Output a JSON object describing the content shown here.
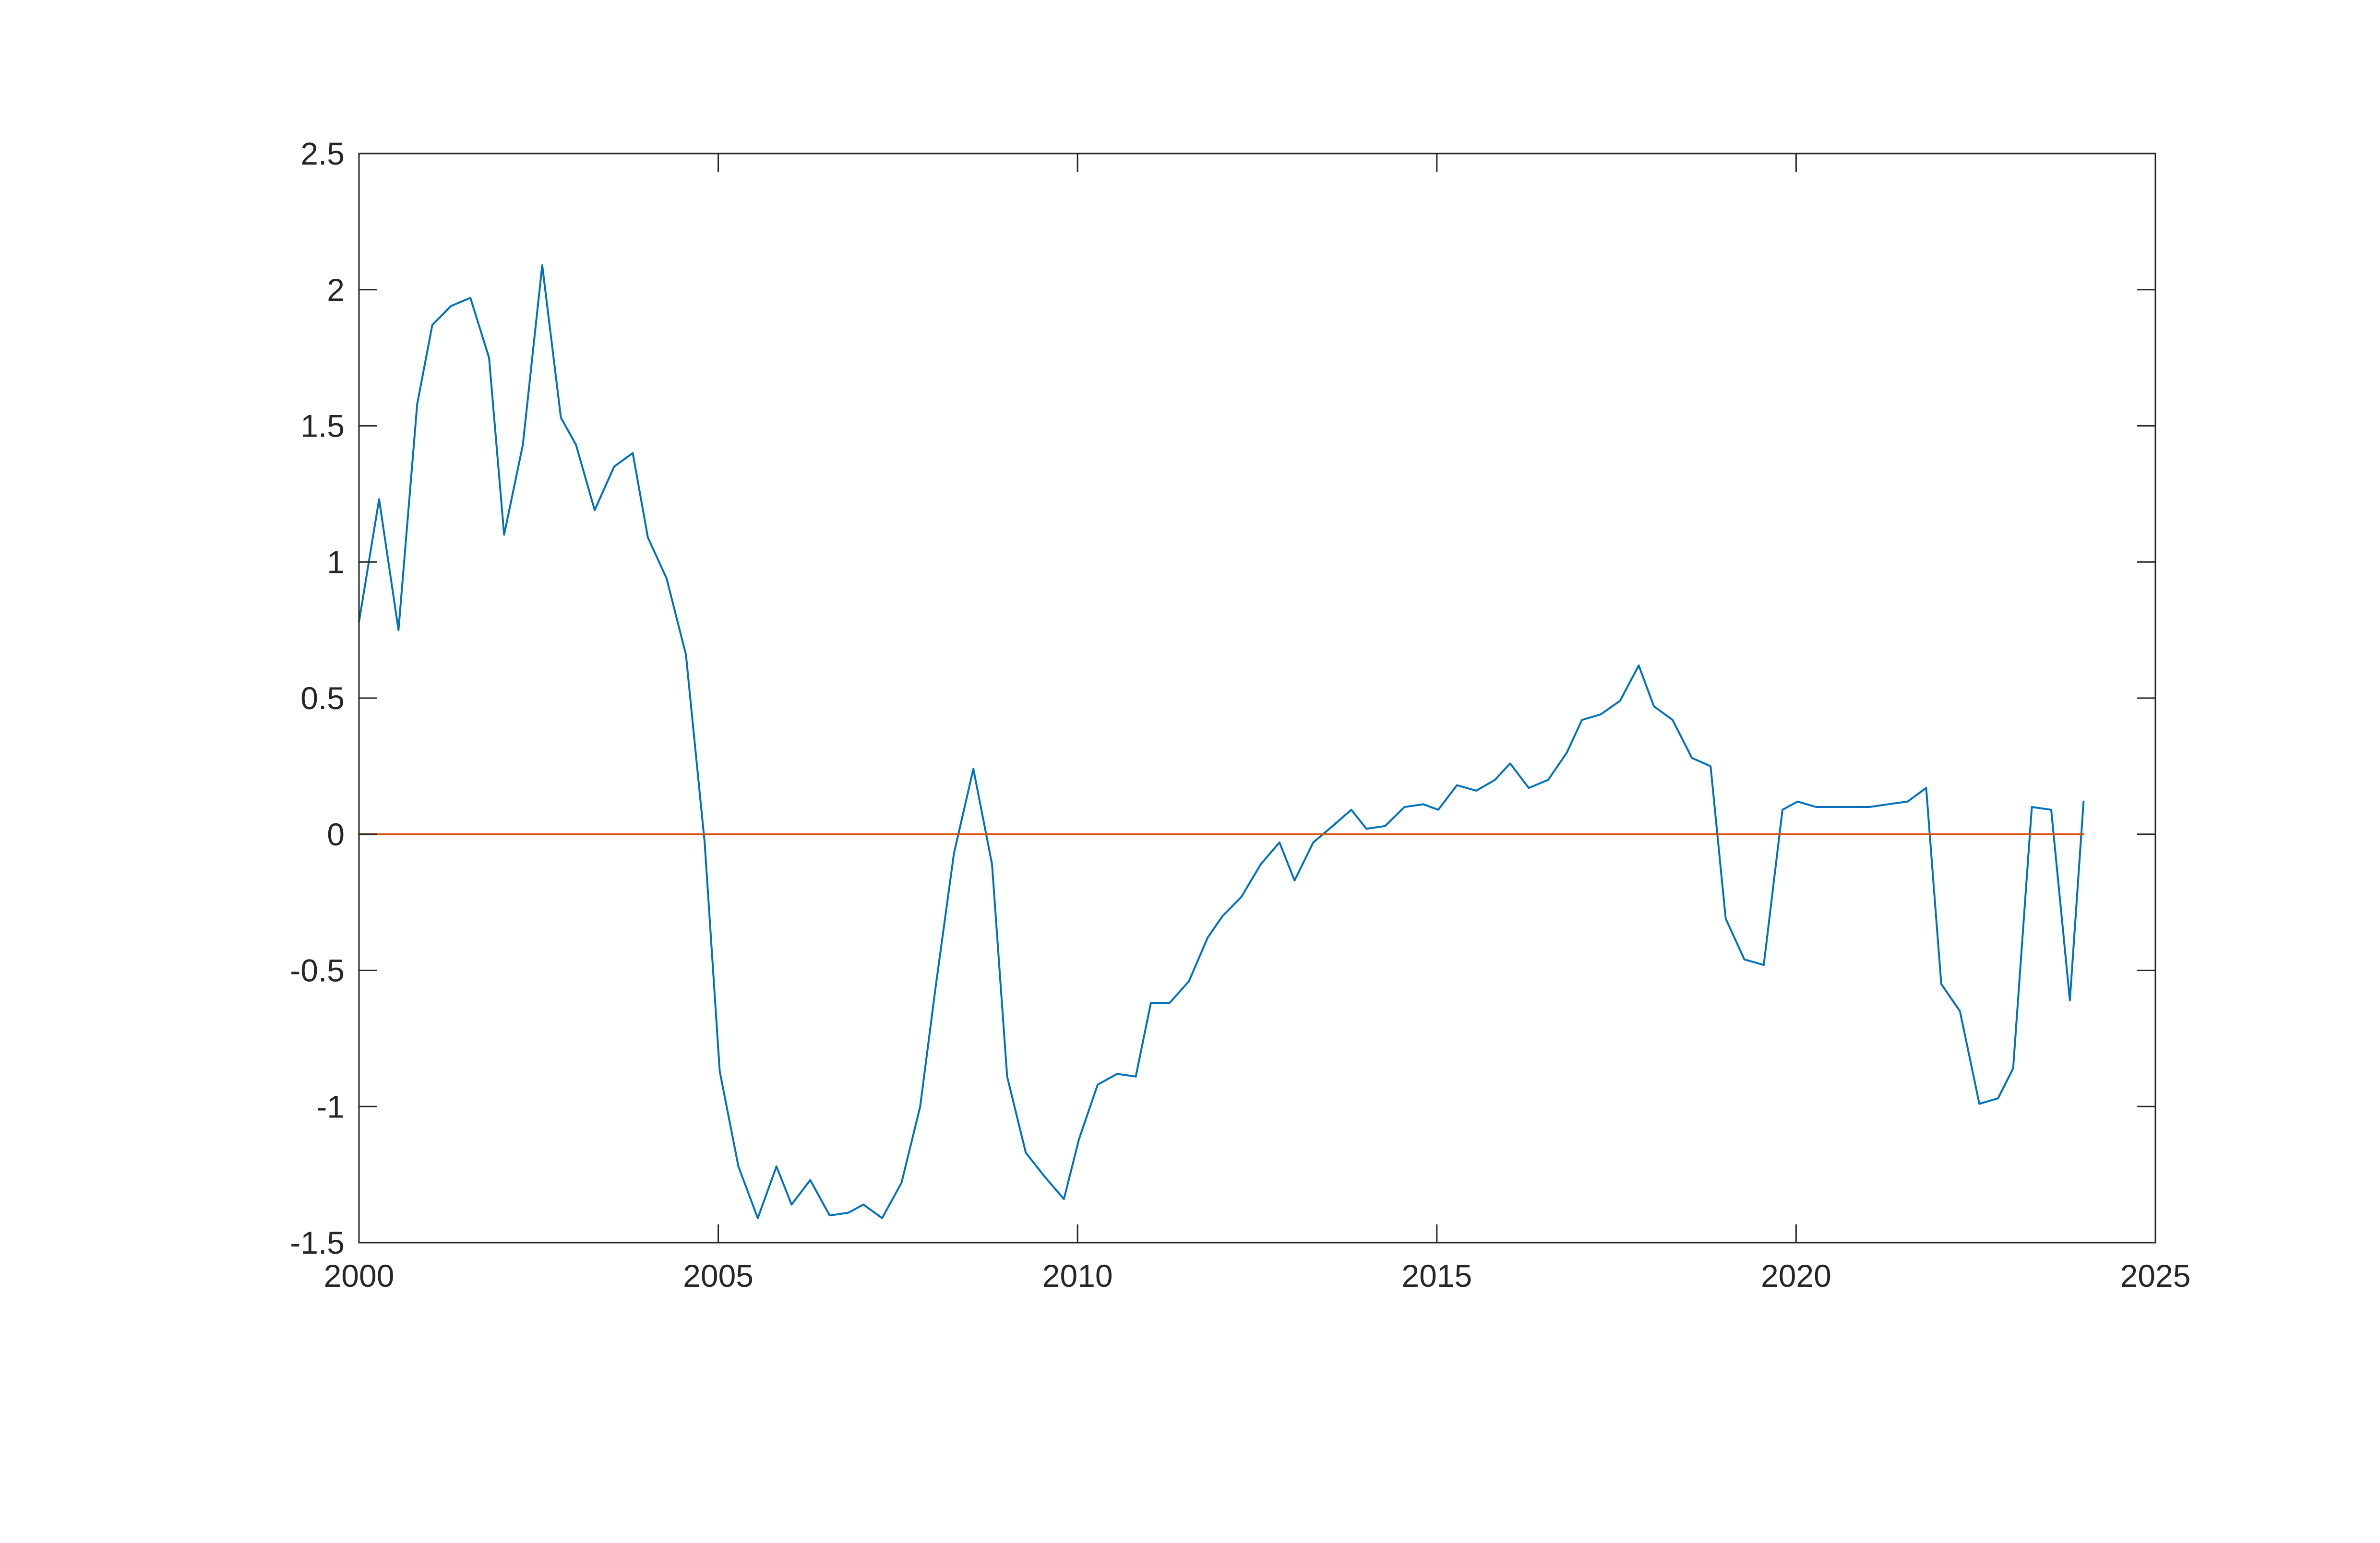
{
  "chart_data": {
    "type": "line",
    "title": "",
    "xlabel": "",
    "ylabel": "",
    "xlim": [
      2000,
      2025
    ],
    "ylim": [
      -1.5,
      2.5
    ],
    "xticks": [
      2000,
      2005,
      2010,
      2015,
      2020,
      2025
    ],
    "xtick_labels": [
      "2000",
      "2005",
      "2010",
      "2015",
      "2020",
      "2025"
    ],
    "yticks": [
      2.5,
      2,
      1.5,
      1,
      0.5,
      0,
      -0.5,
      -1,
      -1.5
    ],
    "ytick_labels": [
      "2.5",
      "2",
      "1.5",
      "1",
      "0.5",
      "0",
      "-0.5",
      "-1",
      "-1.5"
    ],
    "grid": false,
    "box": true,
    "series": [
      {
        "color": "#0072BD",
        "x": [
          2000.0,
          2000.28,
          2000.55,
          2000.81,
          2001.02,
          2001.28,
          2001.55,
          2001.81,
          2002.02,
          2002.28,
          2002.55,
          2002.81,
          2003.02,
          2003.28,
          2003.55,
          2003.81,
          2004.02,
          2004.28,
          2004.55,
          2004.81,
          2005.02,
          2005.28,
          2005.55,
          2005.81,
          2006.02,
          2006.28,
          2006.55,
          2006.81,
          2007.02,
          2007.28,
          2007.55,
          2007.81,
          2008.02,
          2008.28,
          2008.55,
          2008.81,
          2009.02,
          2009.28,
          2009.55,
          2009.81,
          2010.02,
          2010.28,
          2010.55,
          2010.81,
          2011.02,
          2011.28,
          2011.55,
          2011.81,
          2012.02,
          2012.28,
          2012.55,
          2012.81,
          2013.02,
          2013.28,
          2013.55,
          2013.81,
          2014.02,
          2014.28,
          2014.55,
          2014.81,
          2015.02,
          2015.28,
          2015.55,
          2015.81,
          2016.02,
          2016.28,
          2016.55,
          2016.81,
          2017.02,
          2017.28,
          2017.55,
          2017.81,
          2018.02,
          2018.28,
          2018.55,
          2018.81,
          2019.02,
          2019.28,
          2019.55,
          2019.81,
          2020.02,
          2020.28,
          2020.55,
          2020.81,
          2021.02,
          2021.28,
          2021.55,
          2021.81,
          2022.02,
          2022.28,
          2022.55,
          2022.81,
          2023.02,
          2023.28,
          2023.55,
          2023.81,
          2024.0
        ],
        "values": [
          0.78,
          1.23,
          0.75,
          1.58,
          1.87,
          1.94,
          1.97,
          1.75,
          1.1,
          1.43,
          2.09,
          1.53,
          1.43,
          1.19,
          1.35,
          1.4,
          1.09,
          0.94,
          0.66,
          -0.03,
          -0.87,
          -1.22,
          -1.41,
          -1.22,
          -1.36,
          -1.27,
          -1.4,
          -1.39,
          -1.36,
          -1.41,
          -1.28,
          -1.0,
          -0.57,
          -0.07,
          0.24,
          -0.11,
          -0.89,
          -1.17,
          -1.26,
          -1.34,
          -1.12,
          -0.92,
          -0.88,
          -0.89,
          -0.62,
          -0.62,
          -0.54,
          -0.38,
          -0.3,
          -0.23,
          -0.11,
          -0.03,
          -0.17,
          -0.03,
          0.03,
          0.09,
          0.02,
          0.03,
          0.1,
          0.11,
          0.09,
          0.18,
          0.16,
          0.2,
          0.26,
          0.17,
          0.2,
          0.3,
          0.42,
          0.44,
          0.49,
          0.62,
          0.47,
          0.42,
          0.28,
          0.25,
          -0.31,
          -0.46,
          -0.48,
          0.09,
          0.12,
          0.1,
          0.1,
          0.1,
          0.1,
          0.11,
          0.12,
          0.17,
          -0.55,
          -0.65,
          -0.99,
          -0.97,
          -0.86,
          0.1,
          0.09,
          -0.61,
          0.12
        ]
      },
      {
        "color": "#D95319",
        "x": [
          2000.0,
          2024.0
        ],
        "values": [
          0,
          0
        ]
      }
    ]
  }
}
